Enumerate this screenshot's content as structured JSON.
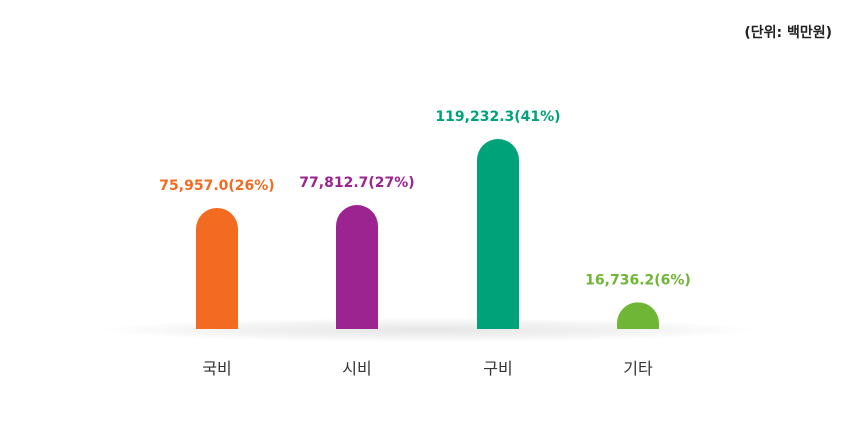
{
  "chart_data": {
    "type": "bar",
    "unit_note": "(단위: 백만원)",
    "categories": [
      "국비",
      "시비",
      "구비",
      "기타"
    ],
    "values": [
      75957.0,
      77812.7,
      119232.3,
      16736.2
    ],
    "value_labels": [
      "75,957.0(26%)",
      "77,812.7(27%)",
      "119,232.3(41%)",
      "16,736.2(6%)"
    ],
    "percentages": [
      26,
      27,
      41,
      6
    ],
    "colors": [
      "#f26b21",
      "#9c2490",
      "#00a27a",
      "#6fb536"
    ],
    "ylim": [
      0,
      119232.3
    ],
    "grid": false,
    "legend": "none",
    "title": "",
    "xlabel": "",
    "ylabel": ""
  }
}
